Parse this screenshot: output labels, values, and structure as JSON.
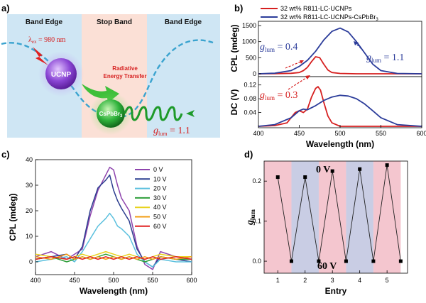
{
  "panel_labels": {
    "a": "a)",
    "b": "b)",
    "c": "c)",
    "d": "d)"
  },
  "schematic": {
    "band_left": "Band Edge",
    "band_center": "Stop Band",
    "band_right": "Band Edge",
    "excitation_sym": "λ",
    "excitation_sub": "ex",
    "excitation_value": " = 980 nm",
    "ucnp": "UCNP",
    "transfer_line1": "Radiative",
    "transfer_line2": "Energy Transfer",
    "cspbbr3": "CsPbBr",
    "cspbbr3_sub": "3",
    "glum_sym": "g",
    "glum_sub": "lum",
    "glum_value": " = 1.1",
    "colors": {
      "edge": "#cfe6f4",
      "stop": "#fbe0d6",
      "wave": "#3aa3cf",
      "ucnp": "#7a38c8",
      "cspb": "#1e9a2a",
      "red": "#d62020"
    }
  },
  "chart_data": [
    {
      "id": "b-top",
      "type": "line",
      "ylabel": "CPL (mdeg)",
      "xlim": [
        400,
        600
      ],
      "ylim": [
        0,
        1500
      ],
      "yticks": [
        0,
        500,
        1000,
        1500
      ],
      "legend": [
        "32 wt% R811-LC-UCNPs",
        "32 wt% R811-LC-UCNPs-CsPbBr"
      ],
      "legend_sub": "3",
      "series": [
        {
          "name": "32 wt% R811-LC-UCNPs",
          "color": "#d62020",
          "x": [
            400,
            420,
            440,
            450,
            455,
            460,
            465,
            470,
            475,
            480,
            485,
            490,
            500,
            520,
            550,
            600
          ],
          "y": [
            0,
            5,
            15,
            40,
            100,
            200,
            380,
            530,
            500,
            300,
            120,
            40,
            10,
            0,
            0,
            0
          ]
        },
        {
          "name": "32 wt% R811-LC-UCNPs-CsPbBr3",
          "color": "#2b3c9a",
          "x": [
            400,
            420,
            440,
            450,
            460,
            470,
            480,
            490,
            500,
            510,
            520,
            530,
            540,
            550,
            570,
            600
          ],
          "y": [
            0,
            20,
            100,
            230,
            420,
            700,
            1050,
            1320,
            1420,
            1300,
            1000,
            650,
            300,
            100,
            10,
            0
          ]
        }
      ],
      "annotations": [
        {
          "sym": "g",
          "sub": "lum",
          "value": " = 0.4",
          "color": "#2b3c9a"
        },
        {
          "sym": "g",
          "sub": "lum",
          "value": " = 1.1",
          "color": "#2b3c9a"
        }
      ]
    },
    {
      "id": "b-bottom",
      "type": "line",
      "ylabel": "DC (V)",
      "xlabel": "Wavelength (nm)",
      "xlim": [
        400,
        600
      ],
      "ylim": [
        0,
        0.14
      ],
      "xticks": [
        400,
        450,
        500,
        550,
        600
      ],
      "yticks": [
        0.04,
        0.08,
        0.12
      ],
      "series": [
        {
          "name": "32 wt% R811-LC-UCNPs",
          "color": "#d62020",
          "x": [
            400,
            420,
            435,
            445,
            450,
            455,
            460,
            465,
            470,
            473,
            476,
            480,
            485,
            490,
            500,
            520,
            600
          ],
          "y": [
            0,
            0.002,
            0.01,
            0.04,
            0.045,
            0.04,
            0.05,
            0.085,
            0.11,
            0.115,
            0.105,
            0.07,
            0.03,
            0.01,
            0,
            0,
            0
          ]
        },
        {
          "name": "32 wt% R811-LC-UCNPs-CsPbBr3",
          "color": "#2b3c9a",
          "x": [
            400,
            420,
            440,
            450,
            455,
            460,
            470,
            480,
            490,
            500,
            510,
            520,
            530,
            540,
            550,
            570,
            600
          ],
          "y": [
            0,
            0.005,
            0.025,
            0.045,
            0.05,
            0.048,
            0.06,
            0.075,
            0.085,
            0.09,
            0.088,
            0.08,
            0.065,
            0.045,
            0.025,
            0.005,
            0
          ]
        }
      ],
      "annotations": [
        {
          "sym": "g",
          "sub": "lum",
          "value": " = 0.3",
          "color": "#d62020"
        }
      ]
    },
    {
      "id": "c",
      "type": "line",
      "xlabel": "Wavelength (nm)",
      "ylabel": "CPL (mdeg)",
      "xlim": [
        400,
        600
      ],
      "ylim": [
        -5,
        40
      ],
      "xticks": [
        400,
        450,
        500,
        550,
        600
      ],
      "yticks": [
        0,
        10,
        20,
        30,
        40
      ],
      "series": [
        {
          "name": "0 V",
          "color": "#8e44ad",
          "x": [
            400,
            420,
            440,
            450,
            460,
            470,
            480,
            490,
            495,
            500,
            505,
            510,
            520,
            530,
            540,
            550,
            560,
            580,
            600
          ],
          "y": [
            2,
            4,
            1,
            3,
            5,
            18,
            28,
            34,
            37,
            36,
            30,
            25,
            20,
            6,
            -1,
            -3,
            4,
            2,
            1
          ]
        },
        {
          "name": "10 V",
          "color": "#2c3e8f",
          "x": [
            400,
            420,
            440,
            450,
            460,
            470,
            480,
            490,
            495,
            500,
            505,
            510,
            520,
            530,
            540,
            550,
            560,
            580,
            600
          ],
          "y": [
            1,
            2,
            3,
            1,
            6,
            20,
            29,
            32,
            34,
            28,
            24,
            21,
            16,
            5,
            0,
            -2,
            2,
            1,
            0
          ]
        },
        {
          "name": "20 V",
          "color": "#5bc0de",
          "x": [
            400,
            420,
            440,
            450,
            460,
            470,
            480,
            490,
            495,
            500,
            505,
            510,
            520,
            530,
            540,
            550,
            560,
            580,
            600
          ],
          "y": [
            0,
            1,
            2,
            0,
            4,
            9,
            14,
            17,
            19,
            17,
            14,
            13,
            10,
            3,
            0,
            -2,
            1,
            0,
            0
          ]
        },
        {
          "name": "30 V",
          "color": "#2e9e3a",
          "x": [
            400,
            420,
            440,
            450,
            460,
            470,
            480,
            490,
            500,
            510,
            520,
            530,
            540,
            550,
            560,
            580,
            600
          ],
          "y": [
            1,
            2,
            0,
            1,
            2,
            1,
            2,
            3,
            2,
            1,
            2,
            1,
            0,
            1,
            2,
            1,
            1
          ]
        },
        {
          "name": "40 V",
          "color": "#e8d21c",
          "x": [
            400,
            420,
            440,
            450,
            460,
            470,
            480,
            490,
            500,
            510,
            520,
            530,
            540,
            550,
            560,
            580,
            600
          ],
          "y": [
            3,
            2,
            1,
            2,
            3,
            2,
            3,
            4,
            3,
            2,
            3,
            2,
            1,
            2,
            3,
            2,
            2
          ]
        },
        {
          "name": "50 V",
          "color": "#f39c12",
          "x": [
            400,
            420,
            440,
            450,
            460,
            470,
            480,
            490,
            500,
            510,
            520,
            530,
            540,
            550,
            560,
            580,
            600
          ],
          "y": [
            2,
            1,
            3,
            1,
            2,
            1,
            2,
            1,
            2,
            1,
            2,
            1,
            2,
            1,
            2,
            1,
            2
          ]
        },
        {
          "name": "60 V",
          "color": "#e02020",
          "x": [
            400,
            420,
            440,
            450,
            460,
            470,
            480,
            490,
            500,
            510,
            520,
            530,
            540,
            550,
            560,
            580,
            600
          ],
          "y": [
            1,
            2,
            1,
            2,
            1,
            2,
            1,
            2,
            1,
            2,
            1,
            2,
            1,
            2,
            1,
            2,
            1
          ]
        }
      ]
    },
    {
      "id": "d",
      "type": "line",
      "xlabel": "Entry",
      "ylabel": "g",
      "ylabel_sub": "lum",
      "xlim": [
        0.5,
        5.75
      ],
      "ylim": [
        -0.03,
        0.25
      ],
      "xticks": [
        1,
        2,
        3,
        4,
        5
      ],
      "yticks": [
        0.0,
        0.1,
        0.2
      ],
      "ytick_labels": [
        "0.0",
        "0.1",
        "0.2"
      ],
      "x": [
        1,
        1.5,
        2,
        2.5,
        3,
        3.5,
        4,
        4.5,
        5,
        5.5
      ],
      "y": [
        0.21,
        0.0,
        0.21,
        0.0,
        0.225,
        0.0,
        0.23,
        0.0,
        0.24,
        0.0
      ],
      "bands": [
        "#f4c6cf",
        "#c9cde4",
        "#f4c6cf",
        "#c9cde4",
        "#f4c6cf"
      ],
      "annotation_top": "0 V",
      "annotation_bottom": "60 V"
    }
  ]
}
